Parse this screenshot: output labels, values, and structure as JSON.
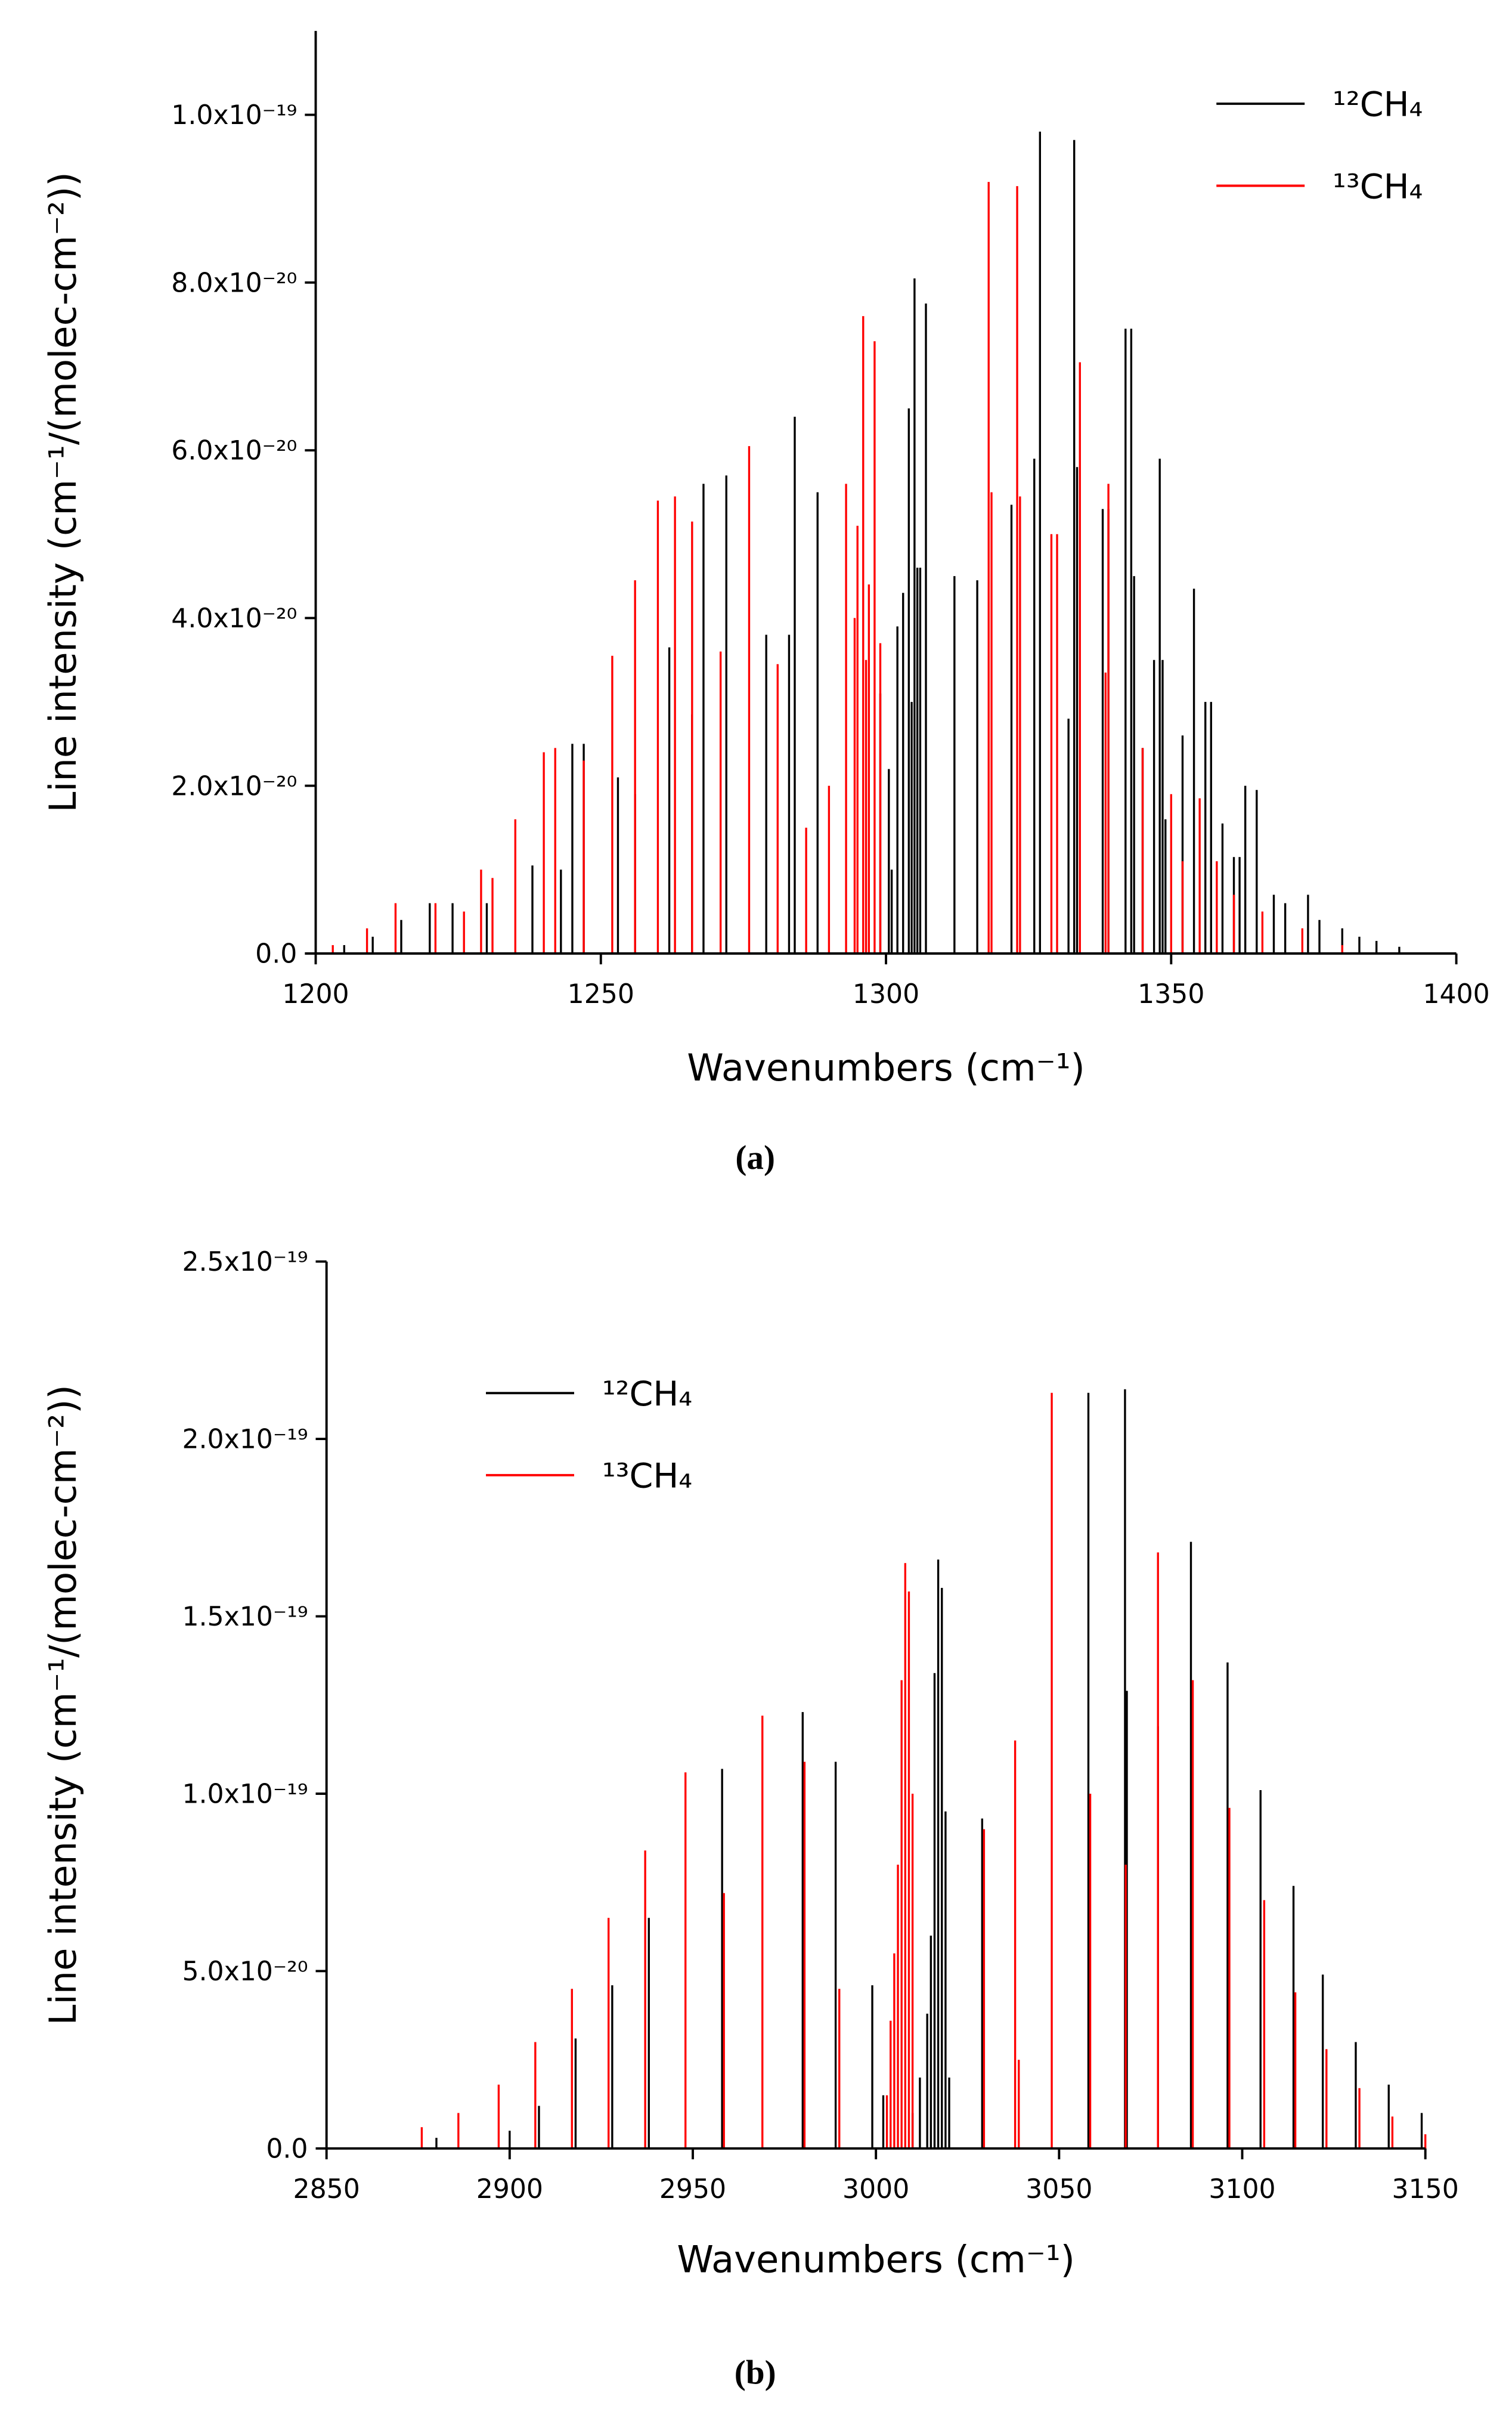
{
  "chart_data": [
    {
      "type": "stick",
      "label": "(a)",
      "ylabel": "Line intensity (cm⁻¹/(molec-cm⁻²))",
      "xlabel": "Wavenumbers (cm⁻¹)",
      "xlim": [
        1200,
        1400
      ],
      "xticks": [
        1200,
        1250,
        1300,
        1350,
        1400
      ],
      "ylim": [
        0,
        1.1e-19
      ],
      "yticks": [
        {
          "value": 0,
          "label": "0.0"
        },
        {
          "value": 2e-20,
          "label": "2.0x10⁻²⁰"
        },
        {
          "value": 4e-20,
          "label": "4.0x10⁻²⁰"
        },
        {
          "value": 6e-20,
          "label": "6.0x10⁻²⁰"
        },
        {
          "value": 8e-20,
          "label": "8.0x10⁻²⁰"
        },
        {
          "value": 1e-19,
          "label": "1.0x10⁻¹⁹"
        }
      ],
      "legend": "top-right",
      "series": [
        {
          "name": "¹²CH₄",
          "color": "#000000",
          "x": [
            1327,
            1333,
            1305,
            1307,
            1342,
            1343,
            1304,
            1284,
            1348,
            1333.5,
            1272,
            1268,
            1288,
            1322,
            1338,
            1339,
            1326,
            1305.5,
            1306,
            1312,
            1316,
            1343.5,
            1354,
            1283,
            1279,
            1262,
            1266,
            1302,
            1299,
            1347,
            1348.5,
            1356,
            1357,
            1352,
            1332,
            1345,
            1245,
            1247,
            1253,
            1256,
            1363,
            1365,
            1359,
            1361,
            1362,
            1349,
            1368,
            1370,
            1374,
            1376,
            1380,
            1383,
            1386,
            1390,
            1238,
            1243,
            1230,
            1224,
            1220,
            1215,
            1210,
            1205,
            1300.5,
            1303,
            1304.5,
            1301
          ],
          "values": [
            9.8e-20,
            9.7e-20,
            8.05e-20,
            7.75e-20,
            7.45e-20,
            7.45e-20,
            6.5e-20,
            6.4e-20,
            5.9e-20,
            5.8e-20,
            5.7e-20,
            5.6e-20,
            5.5e-20,
            5.35e-20,
            5.3e-20,
            5.3e-20,
            5.9e-20,
            4.6e-20,
            4.6e-20,
            4.5e-20,
            4.45e-20,
            4.5e-20,
            4.35e-20,
            3.8e-20,
            3.8e-20,
            3.65e-20,
            2.85e-20,
            3.9e-20,
            3.1e-20,
            3.5e-20,
            3.5e-20,
            3e-20,
            3e-20,
            2.6e-20,
            2.8e-20,
            2.45e-20,
            2.5e-20,
            2.5e-20,
            2.1e-20,
            1.9e-20,
            2e-20,
            1.95e-20,
            1.55e-20,
            1.15e-20,
            1.15e-20,
            1.6e-20,
            7e-21,
            6e-21,
            7e-21,
            4e-21,
            3e-21,
            2e-21,
            1.5e-21,
            8e-22,
            1.05e-20,
            1e-20,
            6e-21,
            6e-21,
            6e-21,
            4e-21,
            2e-21,
            1e-21,
            2.2e-20,
            4.3e-20,
            3e-20,
            1e-20
          ]
        },
        {
          "name": "¹³CH₄",
          "color": "#ff0000",
          "x": [
            1318,
            1323,
            1296,
            1298,
            1334,
            1276,
            1293,
            1295,
            1339,
            1318.5,
            1323.5,
            1260,
            1263,
            1266,
            1256,
            1297,
            1299,
            1329,
            1330,
            1252,
            1281,
            1271,
            1240,
            1242,
            1247,
            1235,
            1345,
            1350,
            1352,
            1355,
            1358,
            1338.5,
            1229,
            1231,
            1214,
            1221,
            1226,
            1209,
            1203,
            1361,
            1366,
            1373,
            1380,
            1290,
            1286,
            1294.5,
            1296.5
          ],
          "values": [
            9.2e-20,
            9.15e-20,
            7.6e-20,
            7.3e-20,
            7.05e-20,
            6.05e-20,
            5.6e-20,
            5.1e-20,
            5.6e-20,
            5.5e-20,
            5.45e-20,
            5.4e-20,
            5.45e-20,
            5.15e-20,
            4.45e-20,
            4.4e-20,
            3.7e-20,
            5e-20,
            5e-20,
            3.55e-20,
            3.45e-20,
            3.6e-20,
            2.4e-20,
            2.45e-20,
            2.3e-20,
            1.6e-20,
            2.45e-20,
            1.9e-20,
            1.1e-20,
            1.85e-20,
            1.1e-20,
            3.35e-20,
            1e-20,
            9e-21,
            6e-21,
            6e-21,
            5e-21,
            3e-21,
            1e-21,
            7e-21,
            5e-21,
            3e-21,
            1e-21,
            2e-20,
            1.5e-20,
            4e-20,
            3.5e-20
          ]
        }
      ]
    },
    {
      "type": "stick",
      "label": "(b)",
      "ylabel": "Line intensity (cm⁻¹/(molec-cm⁻²))",
      "xlabel": "Wavenumbers (cm⁻¹)",
      "xlim": [
        2850,
        3150
      ],
      "xticks": [
        2850,
        2900,
        2950,
        3000,
        3050,
        3100,
        3150
      ],
      "ylim": [
        0,
        2.5e-19
      ],
      "yticks": [
        {
          "value": 0,
          "label": "0.0"
        },
        {
          "value": 5e-20,
          "label": "5.0x10⁻²⁰"
        },
        {
          "value": 1e-19,
          "label": "1.0x10⁻¹⁹"
        },
        {
          "value": 1.5e-19,
          "label": "1.5x10⁻¹⁹"
        },
        {
          "value": 2e-19,
          "label": "2.0x10⁻¹⁹"
        },
        {
          "value": 2.5e-19,
          "label": "2.5x10⁻¹⁹"
        }
      ],
      "legend": "top-left",
      "series": [
        {
          "name": "¹²CH₄",
          "color": "#000000",
          "x": [
            3058,
            3068,
            3086,
            3017,
            3018,
            3096,
            3016,
            3068.5,
            2980,
            3077,
            2958,
            2989,
            3105,
            3019,
            3029,
            3114,
            2938,
            3122,
            2928,
            2999,
            3131,
            3140,
            3149,
            2918,
            2908,
            3015,
            3014,
            3012,
            3010,
            3020,
            2900,
            2880,
            3002
          ],
          "values": [
            2.13e-19,
            2.14e-19,
            1.71e-19,
            1.66e-19,
            1.58e-19,
            1.37e-19,
            1.34e-19,
            1.29e-19,
            1.23e-19,
            1.19e-19,
            1.07e-19,
            1.09e-19,
            1.01e-19,
            9.5e-20,
            9.3e-20,
            7.4e-20,
            6.5e-20,
            4.9e-20,
            4.6e-20,
            4.6e-20,
            3e-20,
            1.8e-20,
            1e-20,
            3.1e-20,
            1.2e-20,
            6e-20,
            3.8e-20,
            2e-20,
            1e-20,
            2e-20,
            5e-21,
            3e-21,
            1.5e-20
          ]
        },
        {
          "name": "¹³CH₄",
          "color": "#ff0000",
          "x": [
            3048,
            3008,
            3009,
            3077,
            3007,
            3086.5,
            2969,
            3038,
            2948,
            2980.5,
            3096.5,
            3029.5,
            2937,
            2958.5,
            3106,
            2927,
            3114.5,
            2917,
            3006,
            3005,
            3004,
            3003,
            3010,
            2907,
            2897,
            2886,
            2876,
            3123,
            3132,
            3141,
            3150,
            3058.5,
            3068.2,
            2990,
            3039
          ],
          "values": [
            2.13e-19,
            1.65e-19,
            1.57e-19,
            1.68e-19,
            1.32e-19,
            1.32e-19,
            1.22e-19,
            1.15e-19,
            1.06e-19,
            1.09e-19,
            9.6e-20,
            9e-20,
            8.4e-20,
            7.2e-20,
            7e-20,
            6.5e-20,
            4.4e-20,
            4.5e-20,
            8e-20,
            5.5e-20,
            3.6e-20,
            1.5e-20,
            1e-19,
            3e-20,
            1.8e-20,
            1e-20,
            6e-21,
            2.8e-20,
            1.7e-20,
            9e-21,
            4e-21,
            1e-19,
            8e-20,
            4.5e-20,
            2.5e-20
          ]
        }
      ]
    }
  ]
}
